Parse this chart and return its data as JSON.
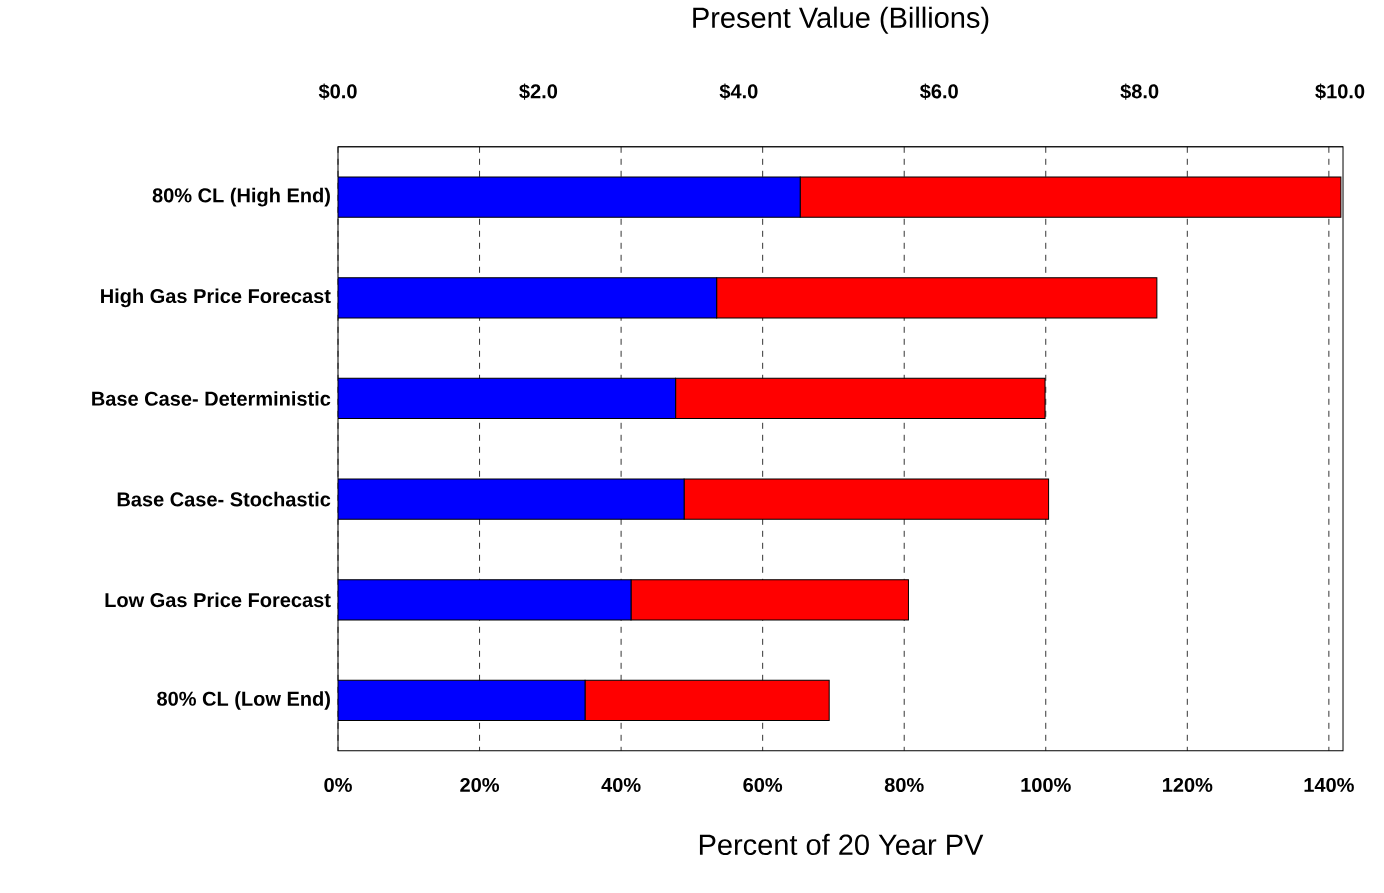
{
  "chart_data": {
    "type": "bar",
    "orientation": "horizontal",
    "stacked": true,
    "xlabel": "Percent of 20 Year PV",
    "x2label": "Present Value (Billions)",
    "categories": [
      "80% CL (High End)",
      "High Gas Price Forecast",
      "Base Case- Deterministic",
      "Base Case- Stochastic",
      "Low Gas Price Forecast",
      "80% CL (Low End)"
    ],
    "series": [
      {
        "color": "#0000ff",
        "values": [
          65.3,
          53.5,
          47.7,
          48.9,
          41.4,
          34.9
        ]
      },
      {
        "color": "#ff0000",
        "values": [
          76.4,
          62.2,
          52.2,
          51.5,
          39.2,
          34.5
        ]
      }
    ],
    "xlim": [
      0,
      142
    ],
    "xticks": [
      {
        "value": 0,
        "label": "0%"
      },
      {
        "value": 20,
        "label": "20%"
      },
      {
        "value": 40,
        "label": "40%"
      },
      {
        "value": 60,
        "label": "60%"
      },
      {
        "value": 80,
        "label": "80%"
      },
      {
        "value": 100,
        "label": "100%"
      },
      {
        "value": 120,
        "label": "120%"
      },
      {
        "value": 140,
        "label": "140%"
      }
    ],
    "x2lim": [
      0,
      10.03
    ],
    "x2ticks": [
      {
        "value": 0,
        "label": "$0.0"
      },
      {
        "value": 2,
        "label": "$2.0"
      },
      {
        "value": 4,
        "label": "$4.0"
      },
      {
        "value": 6,
        "label": "$6.0"
      },
      {
        "value": 8,
        "label": "$8.0"
      },
      {
        "value": 10,
        "label": "$10.0"
      }
    ],
    "grid": "x"
  }
}
